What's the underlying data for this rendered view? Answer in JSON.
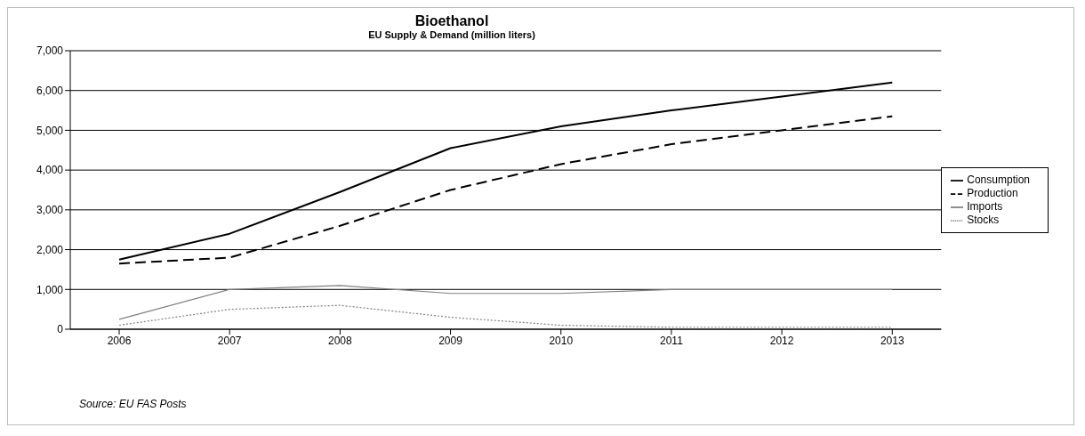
{
  "chart_data": {
    "type": "line",
    "title": "Bioethanol",
    "subtitle": "EU Supply & Demand (million liters)",
    "categories": [
      "2006",
      "2007",
      "2008",
      "2009",
      "2010",
      "2011",
      "2012",
      "2013"
    ],
    "series": [
      {
        "name": "Consumption",
        "color": "#000000",
        "line_style": "solid",
        "values": [
          1750,
          2400,
          3450,
          4550,
          5100,
          5500,
          5850,
          6200
        ]
      },
      {
        "name": "Production",
        "color": "#000000",
        "line_style": "dashed",
        "values": [
          1650,
          1800,
          2600,
          3500,
          4150,
          4650,
          5000,
          5350
        ]
      },
      {
        "name": "Imports",
        "color": "#808080",
        "line_style": "solid",
        "values": [
          250,
          1000,
          1100,
          900,
          900,
          1000,
          1000,
          1000
        ]
      },
      {
        "name": "Stocks",
        "color": "#808080",
        "line_style": "dotted",
        "values": [
          100,
          500,
          600,
          300,
          100,
          50,
          50,
          50
        ]
      }
    ],
    "ylim": [
      0,
      7000
    ],
    "yticks": [
      0,
      {
        "value": 1000,
        "label": "1,000"
      },
      {
        "value": 2000,
        "label": "2,000"
      },
      {
        "value": 3000,
        "label": "3,000"
      },
      {
        "value": 4000,
        "label": "4,000"
      },
      {
        "value": 5000,
        "label": "5,000"
      },
      {
        "value": 6000,
        "label": "6,000"
      },
      {
        "value": 7000,
        "label": "7,000"
      }
    ],
    "grid": "y",
    "legend": "right",
    "marker": "none",
    "annotations": [
      "Source: EU FAS Posts"
    ]
  }
}
